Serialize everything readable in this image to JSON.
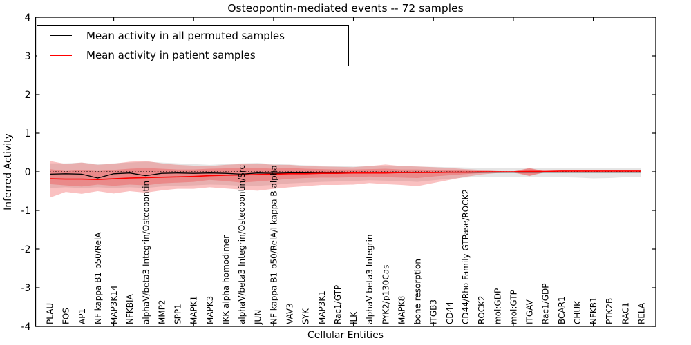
{
  "title": "Osteopontin-mediated events -- 72 samples",
  "axes": {
    "x_label": "Cellular Entities",
    "y_label": "Inferred Activity",
    "y_tick_labels": [
      "4",
      "3",
      "2",
      "1",
      "0",
      "-1",
      "-2",
      "-3",
      "-4"
    ],
    "y_min": -4,
    "y_max": 4
  },
  "legend": {
    "items": [
      {
        "label": "Mean activity in all permuted samples",
        "color": "#000000"
      },
      {
        "label": "Mean activity in patient samples",
        "color": "#ff0000"
      }
    ],
    "position": "upper left"
  },
  "colors": {
    "background": "#ffffff",
    "axis": "#000000",
    "permuted_mean_line": "#000000",
    "patient_mean_line": "#ff0000",
    "patient_band": "#ee3333",
    "permuted_band": "#000000",
    "zero_reference_line": "#000000"
  },
  "chart_data": {
    "type": "line",
    "title": "Osteopontin-mediated events -- 72 samples",
    "xlabel": "Cellular Entities",
    "ylabel": "Inferred Activity",
    "ylim": [
      -4,
      4
    ],
    "grid": false,
    "legend_position": "upper left",
    "x_tick_indices": [
      4,
      9,
      14,
      19,
      24,
      29,
      34
    ],
    "categories": [
      "PLAU",
      "FOS",
      "AP1",
      "NF kappa B1 p50/RelA",
      "MAP3K14",
      "NFKBIA",
      "alphaV/beta3 Integrin/Osteopontin",
      "MMP2",
      "SPP1",
      "MAPK1",
      "MAPK3",
      "IKK alpha homodimer",
      "alphaV/beta3 Integrin/Osteopontin/Src",
      "JUN",
      "NF kappa B1 p50/RelA/I kappa B alpha",
      "VAV3",
      "SYK",
      "MAP3K1",
      "Rac1/GTP",
      "ILK",
      "alphaV beta3 Integrin",
      "PYK2/p130Cas",
      "MAPK8",
      "bone resorption",
      "ITGB3",
      "CD44",
      "CD44/Rho Family GTPase/ROCK2",
      "ROCK2",
      "mol:GDP",
      "mol:GTP",
      "ITGAV",
      "Rac1/GDP",
      "BCAR1",
      "CHUK",
      "NFKB1",
      "PTK2B",
      "RAC1",
      "RELA"
    ],
    "reference_line": {
      "y": 0,
      "style": "dotted",
      "color": "#000000"
    },
    "series": [
      {
        "name": "Mean activity in all permuted samples",
        "color": "#000000",
        "style": "solid",
        "values": [
          -0.06,
          -0.05,
          -0.06,
          -0.16,
          -0.05,
          -0.03,
          -0.1,
          -0.04,
          -0.03,
          -0.04,
          -0.03,
          -0.04,
          -0.06,
          -0.03,
          -0.04,
          -0.03,
          -0.03,
          -0.02,
          -0.02,
          -0.02,
          -0.02,
          -0.02,
          -0.02,
          -0.02,
          -0.01,
          -0.01,
          -0.01,
          -0.01,
          -0.01,
          -0.01,
          -0.01,
          -0.01,
          -0.01,
          -0.01,
          -0.01,
          -0.01,
          -0.01,
          -0.01
        ]
      },
      {
        "name": "Mean activity in patient samples",
        "color": "#ff0000",
        "style": "solid",
        "values": [
          -0.18,
          -0.19,
          -0.19,
          -0.2,
          -0.18,
          -0.16,
          -0.15,
          -0.14,
          -0.13,
          -0.12,
          -0.1,
          -0.09,
          -0.08,
          -0.07,
          -0.06,
          -0.05,
          -0.05,
          -0.04,
          -0.04,
          -0.03,
          -0.03,
          -0.03,
          -0.02,
          -0.02,
          -0.02,
          -0.01,
          -0.01,
          0,
          0,
          0,
          0.01,
          0.01,
          0.02,
          0.02,
          0.02,
          0.02,
          0.02,
          0.02
        ]
      }
    ],
    "bands": [
      {
        "name": "permuted-samples-spread",
        "color": "#000000",
        "opacity": 0.1,
        "top": [
          0.22,
          0.22,
          0.24,
          0.2,
          0.22,
          0.24,
          0.26,
          0.24,
          0.22,
          0.2,
          0.18,
          0.2,
          0.22,
          0.23,
          0.2,
          0.19,
          0.17,
          0.16,
          0.15,
          0.14,
          0.15,
          0.16,
          0.15,
          0.14,
          0.13,
          0.12,
          0.11,
          0.1,
          0.09,
          0.09,
          0.1,
          0.1,
          0.1,
          0.1,
          0.1,
          0.1,
          0.1,
          0.09
        ],
        "bottom": [
          -0.42,
          -0.4,
          -0.42,
          -0.4,
          -0.42,
          -0.4,
          -0.42,
          -0.38,
          -0.36,
          -0.35,
          -0.33,
          -0.34,
          -0.36,
          -0.36,
          -0.34,
          -0.3,
          -0.28,
          -0.26,
          -0.25,
          -0.24,
          -0.22,
          -0.23,
          -0.24,
          -0.26,
          -0.22,
          -0.18,
          -0.15,
          -0.13,
          -0.13,
          -0.13,
          -0.14,
          -0.13,
          -0.14,
          -0.15,
          -0.17,
          -0.16,
          -0.14,
          -0.13
        ]
      },
      {
        "name": "patient-samples-outer-spread",
        "color": "#ee3333",
        "opacity": 0.3,
        "top": [
          0.28,
          0.2,
          0.24,
          0.18,
          0.21,
          0.26,
          0.28,
          0.22,
          0.18,
          0.16,
          0.15,
          0.18,
          0.2,
          0.21,
          0.18,
          0.18,
          0.15,
          0.14,
          0.13,
          0.12,
          0.15,
          0.19,
          0.15,
          0.14,
          0.12,
          0.1,
          0.07,
          0.05,
          0.02,
          0.01,
          0.1,
          0.01,
          0.01,
          0.01,
          0.01,
          0.01,
          0.01,
          0.01
        ],
        "bottom": [
          -0.67,
          -0.52,
          -0.57,
          -0.5,
          -0.56,
          -0.5,
          -0.54,
          -0.48,
          -0.44,
          -0.44,
          -0.4,
          -0.43,
          -0.46,
          -0.49,
          -0.44,
          -0.4,
          -0.37,
          -0.34,
          -0.34,
          -0.33,
          -0.29,
          -0.32,
          -0.34,
          -0.37,
          -0.29,
          -0.21,
          -0.13,
          -0.07,
          -0.03,
          -0.02,
          -0.11,
          -0.01,
          -0.01,
          -0.01,
          -0.01,
          -0.01,
          -0.01,
          -0.01
        ]
      },
      {
        "name": "patient-samples-inner-spread",
        "color": "#ee3333",
        "opacity": 0.3,
        "top": [
          0.07,
          0.02,
          0.05,
          0.02,
          0.05,
          0.08,
          0.1,
          0.08,
          0.06,
          0.06,
          0.08,
          0.09,
          0.1,
          0.1,
          0.08,
          0.1,
          0.08,
          0.07,
          0.06,
          0.06,
          0.07,
          0.08,
          0.06,
          0.06,
          0.05,
          0.04,
          0.03,
          0.02,
          0.01,
          0.005,
          0.09,
          0.005,
          0.005,
          0.005,
          0.005,
          0.005,
          0.005,
          0.005
        ],
        "bottom": [
          -0.32,
          -0.35,
          -0.38,
          -0.33,
          -0.36,
          -0.33,
          -0.35,
          -0.3,
          -0.28,
          -0.26,
          -0.21,
          -0.24,
          -0.28,
          -0.25,
          -0.22,
          -0.18,
          -0.16,
          -0.15,
          -0.15,
          -0.14,
          -0.12,
          -0.14,
          -0.15,
          -0.16,
          -0.12,
          -0.09,
          -0.06,
          -0.03,
          -0.01,
          -0.005,
          -0.1,
          -0.005,
          -0.005,
          -0.005,
          -0.005,
          -0.005,
          -0.005,
          -0.005
        ]
      }
    ]
  }
}
